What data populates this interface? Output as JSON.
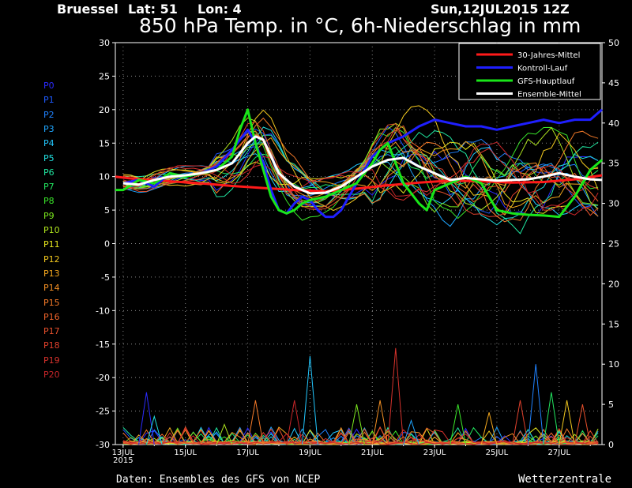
{
  "header": {
    "location": "Bruessel",
    "lat_label": "Lat: 51",
    "lon_label": "Lon: 4",
    "run": "Sun,12JUL2015 12Z"
  },
  "footer": {
    "source": "Daten: Ensembles des GFS von NCEP",
    "brand": "Wetterzentrale"
  },
  "member_labels": [
    {
      "label": "P0",
      "color": "#2a2aff"
    },
    {
      "label": "P1",
      "color": "#1e5bff"
    },
    {
      "label": "P2",
      "color": "#1f82ff"
    },
    {
      "label": "P3",
      "color": "#1fa6ff"
    },
    {
      "label": "P4",
      "color": "#22c8ff"
    },
    {
      "label": "P5",
      "color": "#20e0e0"
    },
    {
      "label": "P6",
      "color": "#20e6a0"
    },
    {
      "label": "P7",
      "color": "#22e660"
    },
    {
      "label": "P8",
      "color": "#3ae62a"
    },
    {
      "label": "P9",
      "color": "#7ae61e"
    },
    {
      "label": "P10",
      "color": "#b0e61e"
    },
    {
      "label": "P11",
      "color": "#e6e61e"
    },
    {
      "label": "P12",
      "color": "#f2c81e"
    },
    {
      "label": "P13",
      "color": "#f5a81e"
    },
    {
      "label": "P14",
      "color": "#f59024"
    },
    {
      "label": "P15",
      "color": "#f57a28"
    },
    {
      "label": "P16",
      "color": "#f0642a"
    },
    {
      "label": "P17",
      "color": "#e8502c"
    },
    {
      "label": "P18",
      "color": "#e0402c"
    },
    {
      "label": "P19",
      "color": "#d6322c"
    },
    {
      "label": "P20",
      "color": "#c8262a"
    }
  ],
  "chart_data": {
    "type": "line",
    "title": "850 hPa Temp. in °C, 6h-Niederschlag in mm",
    "x_tick_labels": [
      "13JUL",
      "2015",
      "15JUL",
      "17JUL",
      "19JUL",
      "21JUL",
      "23JUL",
      "25JUL",
      "27JUL"
    ],
    "x_tick_days": [
      13,
      15,
      17,
      19,
      21,
      23,
      25,
      27
    ],
    "x_range_days": [
      12.75,
      28.375
    ],
    "y_left": {
      "range": [
        -30,
        30
      ],
      "ticks": [
        -30,
        -25,
        -20,
        -15,
        -10,
        -5,
        0,
        5,
        10,
        15,
        20,
        25,
        30
      ]
    },
    "y_right": {
      "range": [
        0,
        50
      ],
      "ticks": [
        0,
        5,
        10,
        15,
        20,
        25,
        30,
        35,
        40,
        45,
        50
      ]
    },
    "legend": {
      "position": "top-right",
      "entries": [
        {
          "name": "30-Jahres-Mittel",
          "color": "#ff1a1a"
        },
        {
          "name": "Kontroll-Lauf",
          "color": "#1f1fff"
        },
        {
          "name": "GFS-Hauptlauf",
          "color": "#19e619"
        },
        {
          "name": "Ensemble-Mittel",
          "color": "#ffffff"
        }
      ]
    },
    "series": [
      {
        "name": "30-Jahres-Mittel",
        "color": "#ff1a1a",
        "axis": "left",
        "x": [
          12.75,
          13.5,
          14.5,
          15.5,
          16.5,
          17.5,
          18.5,
          19.5,
          20.5,
          21.5,
          22.5,
          23.5,
          24.5,
          25.5,
          26.5,
          27.5,
          28.375
        ],
        "y": [
          10,
          9.6,
          9.3,
          9.0,
          8.6,
          8.3,
          8.0,
          7.8,
          8.2,
          8.7,
          9.1,
          9.4,
          9.3,
          9.1,
          9.2,
          9.6,
          10.2
        ]
      },
      {
        "name": "Kontroll-Lauf",
        "color": "#1f1fff",
        "axis": "left",
        "x": [
          13,
          13.5,
          14,
          14.5,
          15,
          15.5,
          16,
          16.5,
          17,
          17.25,
          17.5,
          17.75,
          18,
          18.25,
          18.5,
          18.75,
          19,
          19.25,
          19.5,
          19.75,
          20,
          20.25,
          20.5,
          20.75,
          21,
          21.5,
          22,
          22.5,
          23,
          23.5,
          24,
          24.5,
          25,
          25.5,
          26,
          26.5,
          27,
          27.5,
          28,
          28.375
        ],
        "y": [
          9,
          9.5,
          8.5,
          10.5,
          10,
          10.5,
          11.5,
          14,
          17,
          15,
          12,
          8,
          5,
          4.5,
          6,
          7,
          6.5,
          5,
          4,
          4,
          5,
          7,
          9,
          11,
          13,
          15,
          16,
          17.5,
          18.5,
          18,
          17.5,
          17.5,
          17,
          17.5,
          18,
          18.5,
          18,
          18.5,
          18.5,
          20
        ]
      },
      {
        "name": "GFS-Hauptlauf",
        "color": "#19e619",
        "axis": "left",
        "x": [
          12.75,
          13,
          13.5,
          14,
          14.5,
          15,
          15.5,
          16,
          16.5,
          16.75,
          17,
          17.25,
          17.5,
          17.75,
          18,
          18.25,
          18.5,
          18.75,
          19,
          19.5,
          20,
          20.5,
          21,
          21.25,
          21.5,
          22,
          22.5,
          22.75,
          23,
          23.5,
          24,
          24.5,
          25,
          25.5,
          26,
          26.5,
          27,
          27.5,
          28,
          28.375
        ],
        "y": [
          8,
          8,
          9.5,
          9,
          10.5,
          10,
          10.5,
          11,
          13,
          17,
          20,
          15,
          11,
          7,
          5,
          4.5,
          5,
          6,
          6.5,
          7,
          8,
          9,
          12,
          14,
          15,
          9,
          6,
          5,
          8,
          9,
          10,
          9,
          5,
          4.5,
          4.3,
          4.2,
          4,
          7,
          11,
          12.5
        ]
      },
      {
        "name": "Ensemble-Mittel",
        "color": "#ffffff",
        "axis": "left",
        "x": [
          13,
          13.5,
          14,
          14.5,
          15,
          15.5,
          16,
          16.5,
          17,
          17.25,
          17.5,
          17.75,
          18,
          18.5,
          19,
          19.5,
          20,
          20.5,
          21,
          21.5,
          22,
          22.5,
          23,
          23.5,
          24,
          24.5,
          25,
          25.5,
          26,
          26.5,
          27,
          27.5,
          28,
          28.375
        ],
        "y": [
          9,
          8.8,
          9.5,
          10,
          10.2,
          10.5,
          11,
          12,
          15,
          16,
          15.5,
          13,
          10.5,
          8.5,
          7.5,
          7.6,
          8.5,
          10,
          11.5,
          12.5,
          12.8,
          11.5,
          10.5,
          9.5,
          9.8,
          9.6,
          9.4,
          9.5,
          9.6,
          10,
          10.5,
          10,
          9.6,
          9.5
        ]
      }
    ],
    "precip_peaks": [
      {
        "day": 13.75,
        "mm": 6.5
      },
      {
        "day": 14.0,
        "mm": 3.5
      },
      {
        "day": 16.25,
        "mm": 2.5
      },
      {
        "day": 17.25,
        "mm": 5.5
      },
      {
        "day": 18.5,
        "mm": 5.5
      },
      {
        "day": 19.0,
        "mm": 11.0
      },
      {
        "day": 20.5,
        "mm": 5.0
      },
      {
        "day": 21.25,
        "mm": 5.5
      },
      {
        "day": 21.75,
        "mm": 12.0
      },
      {
        "day": 22.25,
        "mm": 3.0
      },
      {
        "day": 23.75,
        "mm": 5.0
      },
      {
        "day": 24.75,
        "mm": 4.0
      },
      {
        "day": 25.75,
        "mm": 5.5
      },
      {
        "day": 26.25,
        "mm": 10.0
      },
      {
        "day": 26.75,
        "mm": 6.5
      },
      {
        "day": 27.25,
        "mm": 5.5
      },
      {
        "day": 27.75,
        "mm": 5.0
      }
    ]
  }
}
